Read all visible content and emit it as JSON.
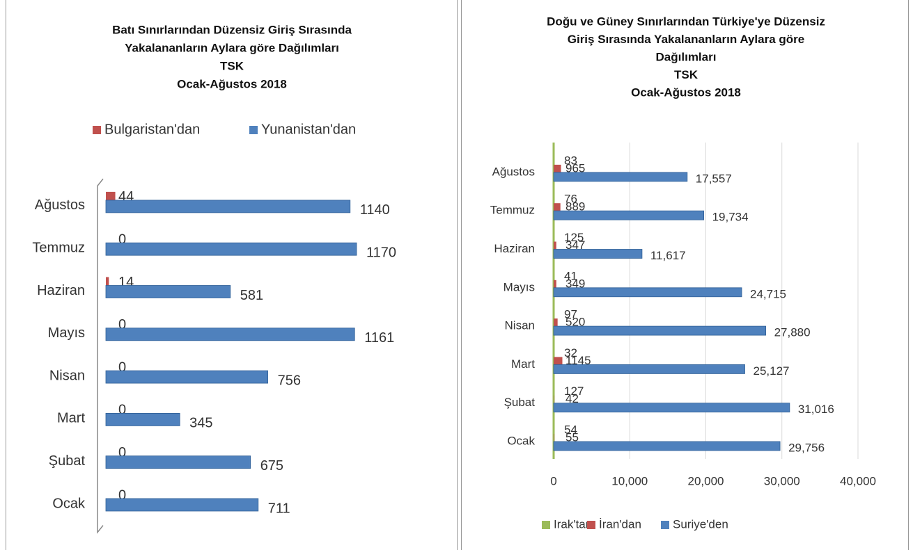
{
  "chart_data": [
    {
      "type": "bar",
      "orientation": "horizontal",
      "title": [
        "Batı Sınırlarından Düzensiz Giriş Sırasında",
        "Yakalananların Aylara göre Dağılımları",
        "TSK",
        "Ocak-Ağustos 2018"
      ],
      "categories": [
        "Ocak",
        "Şubat",
        "Mart",
        "Nisan",
        "Mayıs",
        "Haziran",
        "Temmuz",
        "Ağustos"
      ],
      "series": [
        {
          "name": "Bulgaristan'dan",
          "color": "#c0504d",
          "values": [
            0,
            0,
            0,
            0,
            0,
            14,
            0,
            44
          ]
        },
        {
          "name": "Yunanistan'dan",
          "color": "#4f81bd",
          "values": [
            711,
            675,
            345,
            756,
            1161,
            581,
            1170,
            1140
          ]
        }
      ],
      "legend": "top"
    },
    {
      "type": "bar",
      "orientation": "horizontal",
      "title": [
        "Doğu ve Güney Sınırlarından Türkiye'ye Düzensiz",
        "Giriş Sırasında Yakalananların Aylara göre",
        "Dağılımları",
        "TSK",
        "Ocak-Ağustos 2018"
      ],
      "categories": [
        "Ocak",
        "Şubat",
        "Mart",
        "Nisan",
        "Mayıs",
        "Haziran",
        "Temmuz",
        "Ağustos"
      ],
      "series": [
        {
          "name": "Irak'tan",
          "color": "#9bbb59",
          "values": [
            54,
            127,
            32,
            97,
            41,
            125,
            76,
            83
          ]
        },
        {
          "name": "İran'dan",
          "color": "#c0504d",
          "values": [
            55,
            42,
            1145,
            520,
            349,
            347,
            889,
            965
          ]
        },
        {
          "name": "Suriye'den",
          "color": "#4f81bd",
          "values": [
            29756,
            31016,
            25127,
            27880,
            24715,
            11617,
            19734,
            17557
          ],
          "value_labels": [
            "29,756",
            "31,016",
            "25,127",
            "27,880",
            "24,715",
            "11,617",
            "19,734",
            "17,557"
          ]
        }
      ],
      "xlim": [
        0,
        40000
      ],
      "xticks": [
        0,
        {
          "value": 10000,
          "label": "10,000"
        },
        {
          "value": 20000,
          "label": "20,000"
        },
        {
          "value": 30000,
          "label": "30,000"
        },
        {
          "value": 40000,
          "label": "40,000"
        }
      ],
      "grid": true,
      "legend": "bottom"
    }
  ]
}
